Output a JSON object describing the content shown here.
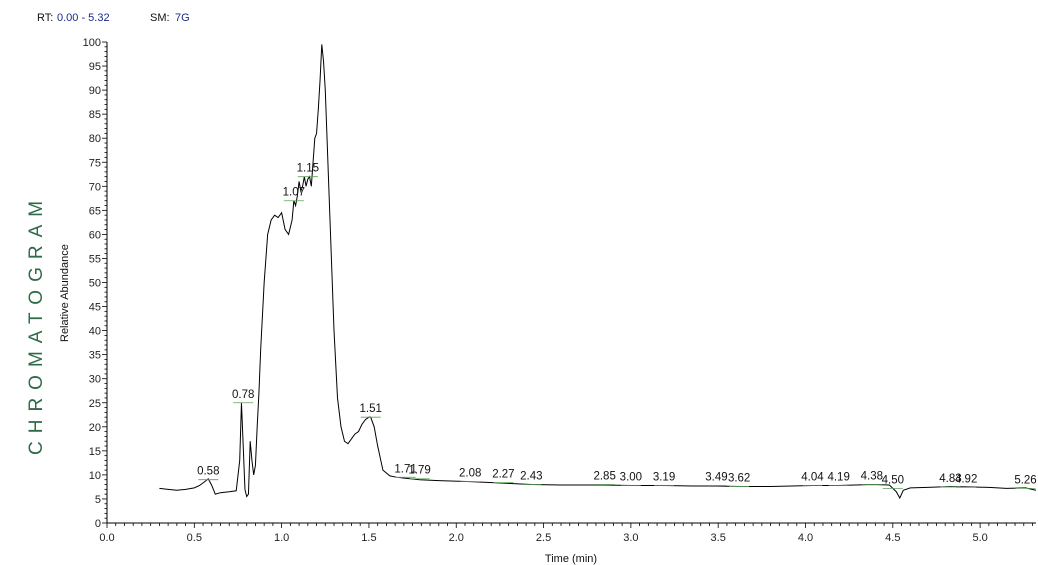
{
  "header": {
    "rt_label": "RT:",
    "rt_range": "0.00 - 5.32",
    "sm_label": "SM:",
    "sm_value": "7G"
  },
  "side_title": "CHROMATOGRAM",
  "colors": {
    "trace": "#000000",
    "side_title": "#2e6b47",
    "header_value": "#1a2a8a",
    "peak_marker": "#5aa05a"
  },
  "chart_data": {
    "type": "line",
    "xlabel": "Time (min)",
    "ylabel": "Relative Abundance",
    "xlim": [
      0.0,
      5.32
    ],
    "ylim": [
      0,
      100
    ],
    "x_ticks": [
      "0.0",
      "0.5",
      "1.0",
      "1.5",
      "2.0",
      "2.5",
      "3.0",
      "3.5",
      "4.0",
      "4.5",
      "5.0"
    ],
    "y_ticks": [
      "0",
      "5",
      "10",
      "15",
      "20",
      "25",
      "30",
      "35",
      "40",
      "45",
      "50",
      "55",
      "60",
      "65",
      "70",
      "75",
      "80",
      "85",
      "90",
      "95",
      "100"
    ],
    "grid": false,
    "peaks": [
      {
        "label": "0.58",
        "x": 0.58,
        "y": 9
      },
      {
        "label": "0.78",
        "x": 0.78,
        "y": 25
      },
      {
        "label": "1.07",
        "x": 1.07,
        "y": 67
      },
      {
        "label": "1.15",
        "x": 1.15,
        "y": 72
      },
      {
        "label": "1.51",
        "x": 1.51,
        "y": 22
      },
      {
        "label": "1.71",
        "x": 1.71,
        "y": 9.5
      },
      {
        "label": "1.79",
        "x": 1.79,
        "y": 9.2
      },
      {
        "label": "2.08",
        "x": 2.08,
        "y": 8.6
      },
      {
        "label": "2.27",
        "x": 2.27,
        "y": 8.4
      },
      {
        "label": "2.43",
        "x": 2.43,
        "y": 8.0
      },
      {
        "label": "2.85",
        "x": 2.85,
        "y": 8.0
      },
      {
        "label": "3.00",
        "x": 3.0,
        "y": 7.8
      },
      {
        "label": "3.19",
        "x": 3.19,
        "y": 7.8
      },
      {
        "label": "3.49",
        "x": 3.49,
        "y": 7.8
      },
      {
        "label": "3.62",
        "x": 3.62,
        "y": 7.6
      },
      {
        "label": "4.04",
        "x": 4.04,
        "y": 7.8
      },
      {
        "label": "4.19",
        "x": 4.19,
        "y": 7.8
      },
      {
        "label": "4.38",
        "x": 4.38,
        "y": 8.0
      },
      {
        "label": "4.50",
        "x": 4.5,
        "y": 7.2
      },
      {
        "label": "4.83",
        "x": 4.83,
        "y": 7.5
      },
      {
        "label": "4.92",
        "x": 4.92,
        "y": 7.4
      },
      {
        "label": "5.26",
        "x": 5.26,
        "y": 7.2
      }
    ],
    "series": [
      {
        "x": [
          0.3,
          0.35,
          0.4,
          0.45,
          0.5,
          0.53,
          0.56,
          0.58,
          0.6,
          0.62,
          0.65,
          0.7,
          0.74,
          0.76,
          0.77,
          0.78,
          0.79,
          0.8,
          0.81,
          0.82,
          0.83,
          0.84,
          0.85,
          0.86,
          0.87,
          0.88,
          0.9,
          0.92,
          0.94,
          0.96,
          0.98,
          1.0,
          1.02,
          1.04,
          1.06,
          1.07,
          1.08,
          1.09,
          1.1,
          1.11,
          1.12,
          1.13,
          1.14,
          1.15,
          1.16,
          1.17,
          1.18,
          1.19,
          1.2,
          1.21,
          1.22,
          1.23,
          1.24,
          1.25,
          1.26,
          1.28,
          1.3,
          1.32,
          1.34,
          1.36,
          1.38,
          1.4,
          1.42,
          1.44,
          1.46,
          1.48,
          1.5,
          1.51,
          1.53,
          1.55,
          1.58,
          1.62,
          1.66,
          1.71,
          1.79,
          1.9,
          2.08,
          2.27,
          2.43,
          2.6,
          2.85,
          3.0,
          3.19,
          3.35,
          3.49,
          3.62,
          3.8,
          4.04,
          4.19,
          4.38,
          4.48,
          4.52,
          4.54,
          4.56,
          4.6,
          4.7,
          4.83,
          4.92,
          5.05,
          5.15,
          5.26,
          5.32
        ],
        "y": [
          7.2,
          7.0,
          6.8,
          7.0,
          7.3,
          7.8,
          8.6,
          9.2,
          7.8,
          6.0,
          6.3,
          6.5,
          6.7,
          13,
          25,
          16,
          7,
          5.5,
          6,
          17,
          13,
          10,
          12,
          20,
          27,
          36,
          50,
          60,
          63,
          64,
          63.5,
          64.5,
          61,
          60,
          63,
          67,
          66,
          68,
          71,
          69,
          70,
          72,
          70,
          71.5,
          72,
          70,
          75,
          80,
          81,
          86,
          92,
          99.5,
          96,
          90,
          80,
          60,
          40,
          26,
          20,
          17,
          16.5,
          17.5,
          18.5,
          19,
          20.5,
          21.5,
          22,
          22,
          20,
          16,
          11,
          9.8,
          9.5,
          9.3,
          9.0,
          8.8,
          8.6,
          8.3,
          8.0,
          7.9,
          7.9,
          7.8,
          7.8,
          7.7,
          7.7,
          7.6,
          7.6,
          7.8,
          7.8,
          8.0,
          7.9,
          6.5,
          5.2,
          6.8,
          7.3,
          7.4,
          7.6,
          7.5,
          7.4,
          7.2,
          7.3,
          6.8
        ]
      }
    ]
  }
}
